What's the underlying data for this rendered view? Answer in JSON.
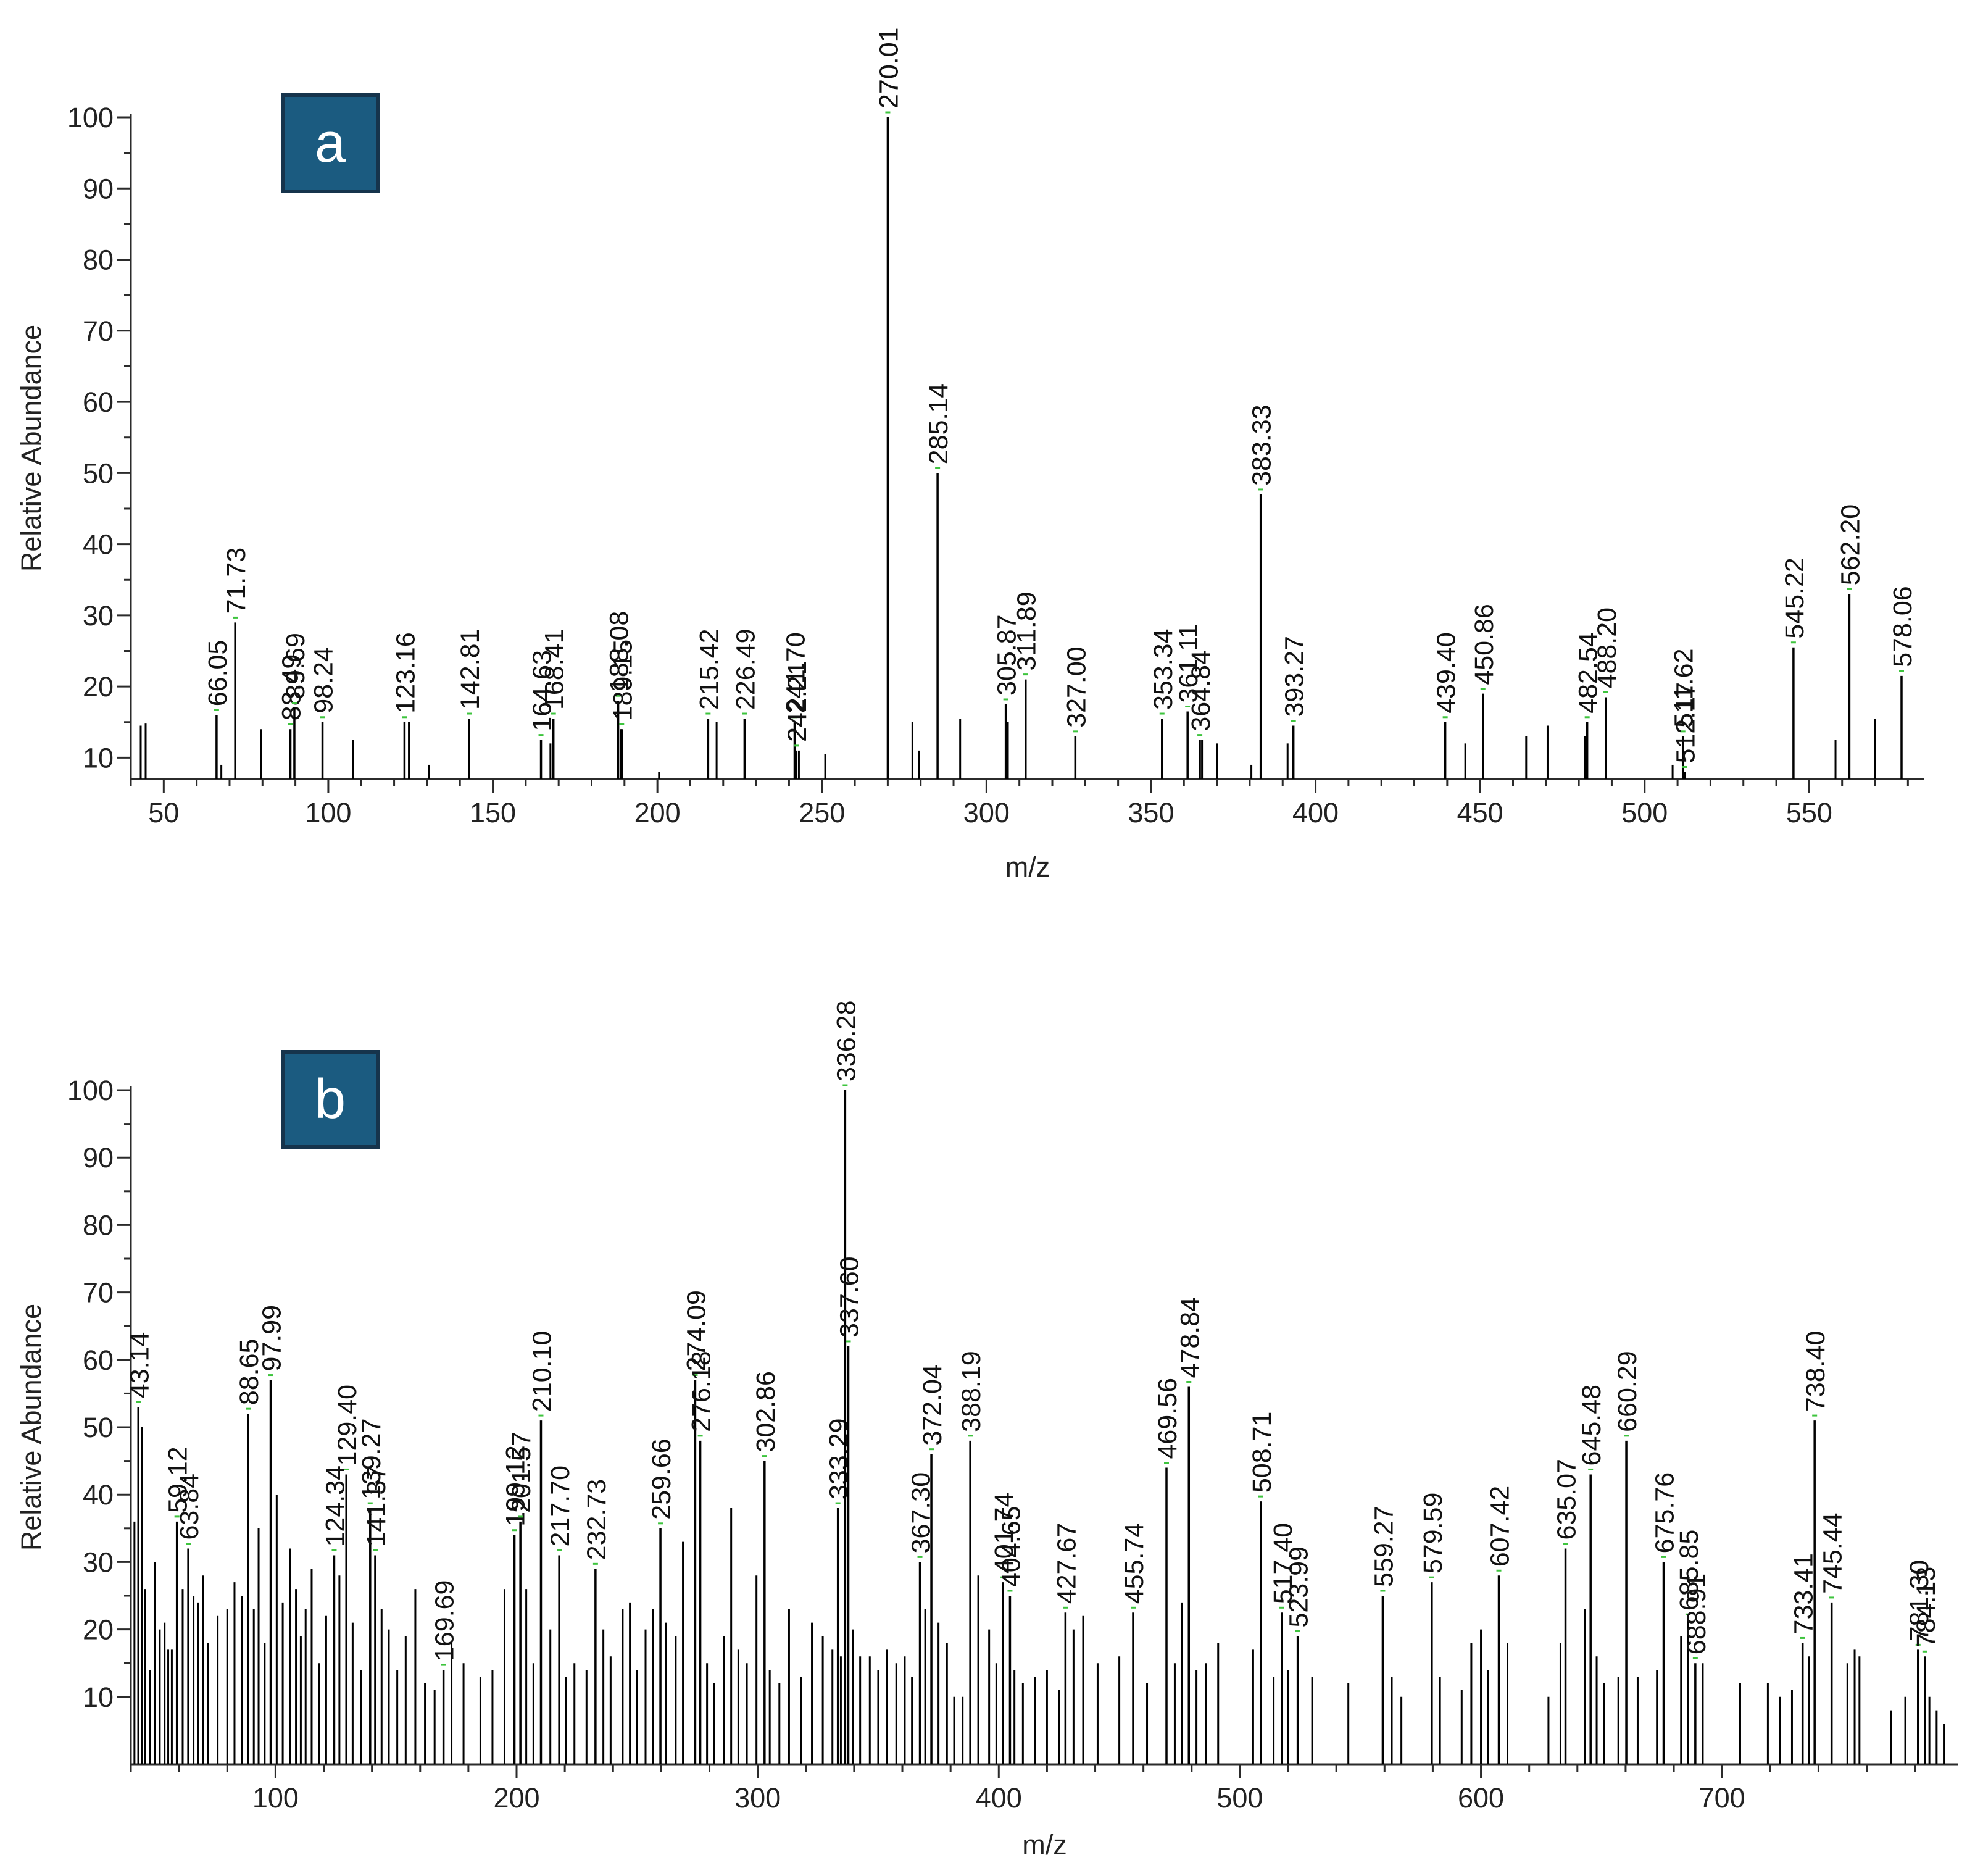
{
  "chart_data": [
    {
      "type": "bar",
      "panel_label": "a",
      "xlabel": "m/z",
      "ylabel": "Relative Abundance",
      "xlim": [
        40,
        585
      ],
      "ylim": [
        7,
        100
      ],
      "x_ticks": [
        50,
        100,
        150,
        200,
        250,
        300,
        350,
        400,
        450,
        500,
        550
      ],
      "y_ticks": [
        10,
        20,
        30,
        40,
        50,
        60,
        70,
        80,
        90,
        100
      ],
      "peaks": [
        {
          "mz": 66.05,
          "y": 16,
          "label": "66.05"
        },
        {
          "mz": 71.73,
          "y": 29,
          "label": "71.73"
        },
        {
          "mz": 88.49,
          "y": 14,
          "label": "88.49"
        },
        {
          "mz": 89.69,
          "y": 17,
          "label": "89.69"
        },
        {
          "mz": 98.24,
          "y": 15,
          "label": "98.24"
        },
        {
          "mz": 123.16,
          "y": 15,
          "label": "123.16"
        },
        {
          "mz": 142.81,
          "y": 15.5,
          "label": "142.81"
        },
        {
          "mz": 164.63,
          "y": 12.5,
          "label": "164.63"
        },
        {
          "mz": 168.41,
          "y": 15.5,
          "label": "168.41"
        },
        {
          "mz": 188.08,
          "y": 18,
          "label": "188.08"
        },
        {
          "mz": 189.15,
          "y": 14,
          "label": "189.15"
        },
        {
          "mz": 215.42,
          "y": 15.5,
          "label": "215.42"
        },
        {
          "mz": 226.49,
          "y": 15.5,
          "label": "226.49"
        },
        {
          "mz": 241.7,
          "y": 15,
          "label": "241.70"
        },
        {
          "mz": 242.21,
          "y": 11,
          "label": "242.21"
        },
        {
          "mz": 270.01,
          "y": 100,
          "label": "270.01"
        },
        {
          "mz": 285.14,
          "y": 50,
          "label": "285.14"
        },
        {
          "mz": 305.87,
          "y": 17.5,
          "label": "305.87"
        },
        {
          "mz": 311.89,
          "y": 21,
          "label": "311.89"
        },
        {
          "mz": 327.0,
          "y": 13,
          "label": "327.00"
        },
        {
          "mz": 353.34,
          "y": 15.5,
          "label": "353.34"
        },
        {
          "mz": 361.11,
          "y": 16.5,
          "label": "361.11"
        },
        {
          "mz": 364.84,
          "y": 12.5,
          "label": "364.84"
        },
        {
          "mz": 383.33,
          "y": 47,
          "label": "383.33"
        },
        {
          "mz": 393.27,
          "y": 14.5,
          "label": "393.27"
        },
        {
          "mz": 439.4,
          "y": 15,
          "label": "439.40"
        },
        {
          "mz": 450.86,
          "y": 19,
          "label": "450.86"
        },
        {
          "mz": 482.54,
          "y": 15,
          "label": "482.54"
        },
        {
          "mz": 488.2,
          "y": 18.5,
          "label": "488.20"
        },
        {
          "mz": 511.62,
          "y": 13,
          "label": "511.62"
        },
        {
          "mz": 512.17,
          "y": 8,
          "label": "512.17"
        },
        {
          "mz": 545.22,
          "y": 25.5,
          "label": "545.22"
        },
        {
          "mz": 562.2,
          "y": 33,
          "label": "562.20"
        },
        {
          "mz": 578.06,
          "y": 21.5,
          "label": "578.06"
        }
      ],
      "minor_peaks": [
        {
          "mz": 43,
          "y": 14.5
        },
        {
          "mz": 44.5,
          "y": 14.8
        },
        {
          "mz": 67.5,
          "y": 9
        },
        {
          "mz": 79.5,
          "y": 14
        },
        {
          "mz": 107.5,
          "y": 12.5
        },
        {
          "mz": 124.5,
          "y": 15
        },
        {
          "mz": 130.5,
          "y": 9
        },
        {
          "mz": 167.5,
          "y": 12
        },
        {
          "mz": 188.9,
          "y": 14
        },
        {
          "mz": 200.5,
          "y": 8
        },
        {
          "mz": 218,
          "y": 15
        },
        {
          "mz": 243,
          "y": 11
        },
        {
          "mz": 251,
          "y": 10.5
        },
        {
          "mz": 277.5,
          "y": 15
        },
        {
          "mz": 279.5,
          "y": 11
        },
        {
          "mz": 292,
          "y": 15.5
        },
        {
          "mz": 306.5,
          "y": 15
        },
        {
          "mz": 365.5,
          "y": 12.5
        },
        {
          "mz": 370,
          "y": 12
        },
        {
          "mz": 380.5,
          "y": 9
        },
        {
          "mz": 391.5,
          "y": 12
        },
        {
          "mz": 445.5,
          "y": 12
        },
        {
          "mz": 464,
          "y": 13
        },
        {
          "mz": 470.5,
          "y": 14.5
        },
        {
          "mz": 481.8,
          "y": 13
        },
        {
          "mz": 508.5,
          "y": 9
        },
        {
          "mz": 558,
          "y": 12.5
        },
        {
          "mz": 570,
          "y": 15.5
        }
      ]
    },
    {
      "type": "bar",
      "panel_label": "b",
      "xlabel": "m/z",
      "ylabel": "Relative Abundance",
      "xlim": [
        40,
        798
      ],
      "ylim": [
        0,
        100
      ],
      "x_ticks": [
        100,
        200,
        300,
        400,
        500,
        600,
        700
      ],
      "y_ticks": [
        10,
        20,
        30,
        40,
        50,
        60,
        70,
        80,
        90,
        100
      ],
      "peaks": [
        {
          "mz": 43.14,
          "y": 53,
          "label": "43.14"
        },
        {
          "mz": 59.12,
          "y": 36,
          "label": "59.12"
        },
        {
          "mz": 63.84,
          "y": 32,
          "label": "63.84"
        },
        {
          "mz": 88.65,
          "y": 52,
          "label": "88.65"
        },
        {
          "mz": 97.99,
          "y": 57,
          "label": "97.99"
        },
        {
          "mz": 124.34,
          "y": 31,
          "label": "124.34"
        },
        {
          "mz": 129.4,
          "y": 43,
          "label": "129.40"
        },
        {
          "mz": 139.27,
          "y": 38,
          "label": "139.27"
        },
        {
          "mz": 141.37,
          "y": 31,
          "label": "141.37"
        },
        {
          "mz": 169.69,
          "y": 14,
          "label": "169.69"
        },
        {
          "mz": 199.12,
          "y": 34,
          "label": "199.12"
        },
        {
          "mz": 201.57,
          "y": 36,
          "label": "201.57"
        },
        {
          "mz": 210.1,
          "y": 51,
          "label": "210.10"
        },
        {
          "mz": 217.7,
          "y": 31,
          "label": "217.70"
        },
        {
          "mz": 232.73,
          "y": 29,
          "label": "232.73"
        },
        {
          "mz": 259.66,
          "y": 35,
          "label": "259.66"
        },
        {
          "mz": 274.09,
          "y": 57,
          "label": "274.09"
        },
        {
          "mz": 276.18,
          "y": 48,
          "label": "276.18"
        },
        {
          "mz": 302.86,
          "y": 45,
          "label": "302.86"
        },
        {
          "mz": 333.29,
          "y": 38,
          "label": "333.29"
        },
        {
          "mz": 336.28,
          "y": 100,
          "label": "336.28"
        },
        {
          "mz": 337.6,
          "y": 62,
          "label": "337.60"
        },
        {
          "mz": 367.3,
          "y": 30,
          "label": "367.30"
        },
        {
          "mz": 372.04,
          "y": 46,
          "label": "372.04"
        },
        {
          "mz": 388.19,
          "y": 48,
          "label": "388.19"
        },
        {
          "mz": 401.74,
          "y": 27,
          "label": "401.74"
        },
        {
          "mz": 404.65,
          "y": 25,
          "label": "404.65"
        },
        {
          "mz": 427.67,
          "y": 22.5,
          "label": "427.67"
        },
        {
          "mz": 455.74,
          "y": 22.5,
          "label": "455.74"
        },
        {
          "mz": 469.56,
          "y": 44,
          "label": "469.56"
        },
        {
          "mz": 478.84,
          "y": 56,
          "label": "478.84"
        },
        {
          "mz": 508.71,
          "y": 39,
          "label": "508.71"
        },
        {
          "mz": 517.4,
          "y": 22.5,
          "label": "517.40"
        },
        {
          "mz": 523.99,
          "y": 19,
          "label": "523.99"
        },
        {
          "mz": 559.27,
          "y": 25,
          "label": "559.27"
        },
        {
          "mz": 579.59,
          "y": 27,
          "label": "579.59"
        },
        {
          "mz": 607.42,
          "y": 28,
          "label": "607.42"
        },
        {
          "mz": 635.07,
          "y": 32,
          "label": "635.07"
        },
        {
          "mz": 645.48,
          "y": 43,
          "label": "645.48"
        },
        {
          "mz": 660.29,
          "y": 48,
          "label": "660.29"
        },
        {
          "mz": 675.76,
          "y": 30,
          "label": "675.76"
        },
        {
          "mz": 685.85,
          "y": 21.5,
          "label": "685.85"
        },
        {
          "mz": 688.91,
          "y": 15,
          "label": "688.91"
        },
        {
          "mz": 733.41,
          "y": 18,
          "label": "733.41"
        },
        {
          "mz": 738.4,
          "y": 51,
          "label": "738.40"
        },
        {
          "mz": 745.44,
          "y": 24,
          "label": "745.44"
        },
        {
          "mz": 781.3,
          "y": 17,
          "label": "781.30"
        },
        {
          "mz": 784.13,
          "y": 16,
          "label": "784.13"
        }
      ],
      "minor_peaks": [
        {
          "mz": 41.5,
          "y": 36
        },
        {
          "mz": 44.5,
          "y": 50
        },
        {
          "mz": 46,
          "y": 26
        },
        {
          "mz": 48,
          "y": 14
        },
        {
          "mz": 50,
          "y": 30
        },
        {
          "mz": 52,
          "y": 20
        },
        {
          "mz": 54,
          "y": 21
        },
        {
          "mz": 55.5,
          "y": 17
        },
        {
          "mz": 57,
          "y": 17
        },
        {
          "mz": 61.5,
          "y": 26
        },
        {
          "mz": 66,
          "y": 25
        },
        {
          "mz": 68,
          "y": 24
        },
        {
          "mz": 70,
          "y": 28
        },
        {
          "mz": 72,
          "y": 18
        },
        {
          "mz": 76,
          "y": 22
        },
        {
          "mz": 80,
          "y": 23
        },
        {
          "mz": 83,
          "y": 27
        },
        {
          "mz": 86,
          "y": 25
        },
        {
          "mz": 91,
          "y": 23
        },
        {
          "mz": 93,
          "y": 35
        },
        {
          "mz": 95.5,
          "y": 18
        },
        {
          "mz": 100.5,
          "y": 40
        },
        {
          "mz": 103,
          "y": 24
        },
        {
          "mz": 106,
          "y": 32
        },
        {
          "mz": 108.5,
          "y": 26
        },
        {
          "mz": 110.5,
          "y": 19
        },
        {
          "mz": 112.5,
          "y": 23
        },
        {
          "mz": 115,
          "y": 29
        },
        {
          "mz": 118,
          "y": 15
        },
        {
          "mz": 121,
          "y": 22
        },
        {
          "mz": 126.5,
          "y": 28
        },
        {
          "mz": 132,
          "y": 21
        },
        {
          "mz": 135.5,
          "y": 14
        },
        {
          "mz": 144,
          "y": 23
        },
        {
          "mz": 147,
          "y": 20
        },
        {
          "mz": 150.5,
          "y": 14
        },
        {
          "mz": 154,
          "y": 19
        },
        {
          "mz": 158,
          "y": 26
        },
        {
          "mz": 162,
          "y": 12
        },
        {
          "mz": 166,
          "y": 11
        },
        {
          "mz": 173,
          "y": 18
        },
        {
          "mz": 178,
          "y": 15
        },
        {
          "mz": 185,
          "y": 13
        },
        {
          "mz": 190,
          "y": 14
        },
        {
          "mz": 195,
          "y": 26
        },
        {
          "mz": 204,
          "y": 26
        },
        {
          "mz": 207,
          "y": 15
        },
        {
          "mz": 214,
          "y": 20
        },
        {
          "mz": 220.5,
          "y": 13
        },
        {
          "mz": 224,
          "y": 15
        },
        {
          "mz": 229,
          "y": 14
        },
        {
          "mz": 236,
          "y": 20
        },
        {
          "mz": 239,
          "y": 16
        },
        {
          "mz": 244,
          "y": 23
        },
        {
          "mz": 247,
          "y": 24
        },
        {
          "mz": 250,
          "y": 14
        },
        {
          "mz": 253.5,
          "y": 20
        },
        {
          "mz": 256.5,
          "y": 23
        },
        {
          "mz": 262,
          "y": 21
        },
        {
          "mz": 266,
          "y": 19
        },
        {
          "mz": 269,
          "y": 33
        },
        {
          "mz": 279,
          "y": 15
        },
        {
          "mz": 282,
          "y": 12
        },
        {
          "mz": 286,
          "y": 19
        },
        {
          "mz": 289,
          "y": 38
        },
        {
          "mz": 292,
          "y": 17
        },
        {
          "mz": 295.5,
          "y": 15
        },
        {
          "mz": 299.5,
          "y": 28
        },
        {
          "mz": 305,
          "y": 14
        },
        {
          "mz": 309,
          "y": 12
        },
        {
          "mz": 313,
          "y": 23
        },
        {
          "mz": 318,
          "y": 13
        },
        {
          "mz": 322.5,
          "y": 21
        },
        {
          "mz": 327,
          "y": 19
        },
        {
          "mz": 331,
          "y": 17
        },
        {
          "mz": 334.5,
          "y": 16
        },
        {
          "mz": 339.5,
          "y": 20
        },
        {
          "mz": 342.5,
          "y": 16
        },
        {
          "mz": 346.5,
          "y": 16
        },
        {
          "mz": 350,
          "y": 14
        },
        {
          "mz": 353.5,
          "y": 17
        },
        {
          "mz": 357.5,
          "y": 15
        },
        {
          "mz": 361,
          "y": 16
        },
        {
          "mz": 364,
          "y": 13
        },
        {
          "mz": 369.5,
          "y": 23
        },
        {
          "mz": 375,
          "y": 21
        },
        {
          "mz": 378.5,
          "y": 18
        },
        {
          "mz": 381.5,
          "y": 10
        },
        {
          "mz": 385,
          "y": 10
        },
        {
          "mz": 391.5,
          "y": 28
        },
        {
          "mz": 396,
          "y": 20
        },
        {
          "mz": 399,
          "y": 15
        },
        {
          "mz": 406.5,
          "y": 14
        },
        {
          "mz": 410,
          "y": 12
        },
        {
          "mz": 415,
          "y": 13
        },
        {
          "mz": 420,
          "y": 14
        },
        {
          "mz": 425,
          "y": 11
        },
        {
          "mz": 431,
          "y": 20
        },
        {
          "mz": 435,
          "y": 22
        },
        {
          "mz": 441,
          "y": 15
        },
        {
          "mz": 450,
          "y": 16
        },
        {
          "mz": 461.5,
          "y": 12
        },
        {
          "mz": 473,
          "y": 15
        },
        {
          "mz": 476,
          "y": 24
        },
        {
          "mz": 482,
          "y": 14
        },
        {
          "mz": 486,
          "y": 15
        },
        {
          "mz": 491,
          "y": 18
        },
        {
          "mz": 505.5,
          "y": 17
        },
        {
          "mz": 514,
          "y": 13
        },
        {
          "mz": 520,
          "y": 14
        },
        {
          "mz": 530,
          "y": 13
        },
        {
          "mz": 545,
          "y": 12
        },
        {
          "mz": 563,
          "y": 13
        },
        {
          "mz": 567,
          "y": 10
        },
        {
          "mz": 583,
          "y": 13
        },
        {
          "mz": 592,
          "y": 11
        },
        {
          "mz": 596,
          "y": 18
        },
        {
          "mz": 600,
          "y": 20
        },
        {
          "mz": 603,
          "y": 14
        },
        {
          "mz": 611,
          "y": 18
        },
        {
          "mz": 628,
          "y": 10
        },
        {
          "mz": 633,
          "y": 18
        },
        {
          "mz": 643,
          "y": 23
        },
        {
          "mz": 648,
          "y": 16
        },
        {
          "mz": 651,
          "y": 12
        },
        {
          "mz": 657,
          "y": 13
        },
        {
          "mz": 665,
          "y": 13
        },
        {
          "mz": 673,
          "y": 14
        },
        {
          "mz": 683,
          "y": 19
        },
        {
          "mz": 692,
          "y": 15
        },
        {
          "mz": 707.5,
          "y": 12
        },
        {
          "mz": 719,
          "y": 12
        },
        {
          "mz": 724,
          "y": 10
        },
        {
          "mz": 729,
          "y": 11
        },
        {
          "mz": 736,
          "y": 16
        },
        {
          "mz": 752,
          "y": 15
        },
        {
          "mz": 755,
          "y": 17
        },
        {
          "mz": 757,
          "y": 16
        },
        {
          "mz": 770,
          "y": 8
        },
        {
          "mz": 776,
          "y": 10
        },
        {
          "mz": 786,
          "y": 10
        },
        {
          "mz": 789,
          "y": 8
        },
        {
          "mz": 792,
          "y": 6
        }
      ]
    }
  ],
  "colors": {
    "axis": "#2b2b2b",
    "peak": "#000000",
    "leader": "#3ec43e",
    "badge_bg": "#1b5b80",
    "badge_border": "#16344c",
    "badge_text": "#ffffff"
  }
}
